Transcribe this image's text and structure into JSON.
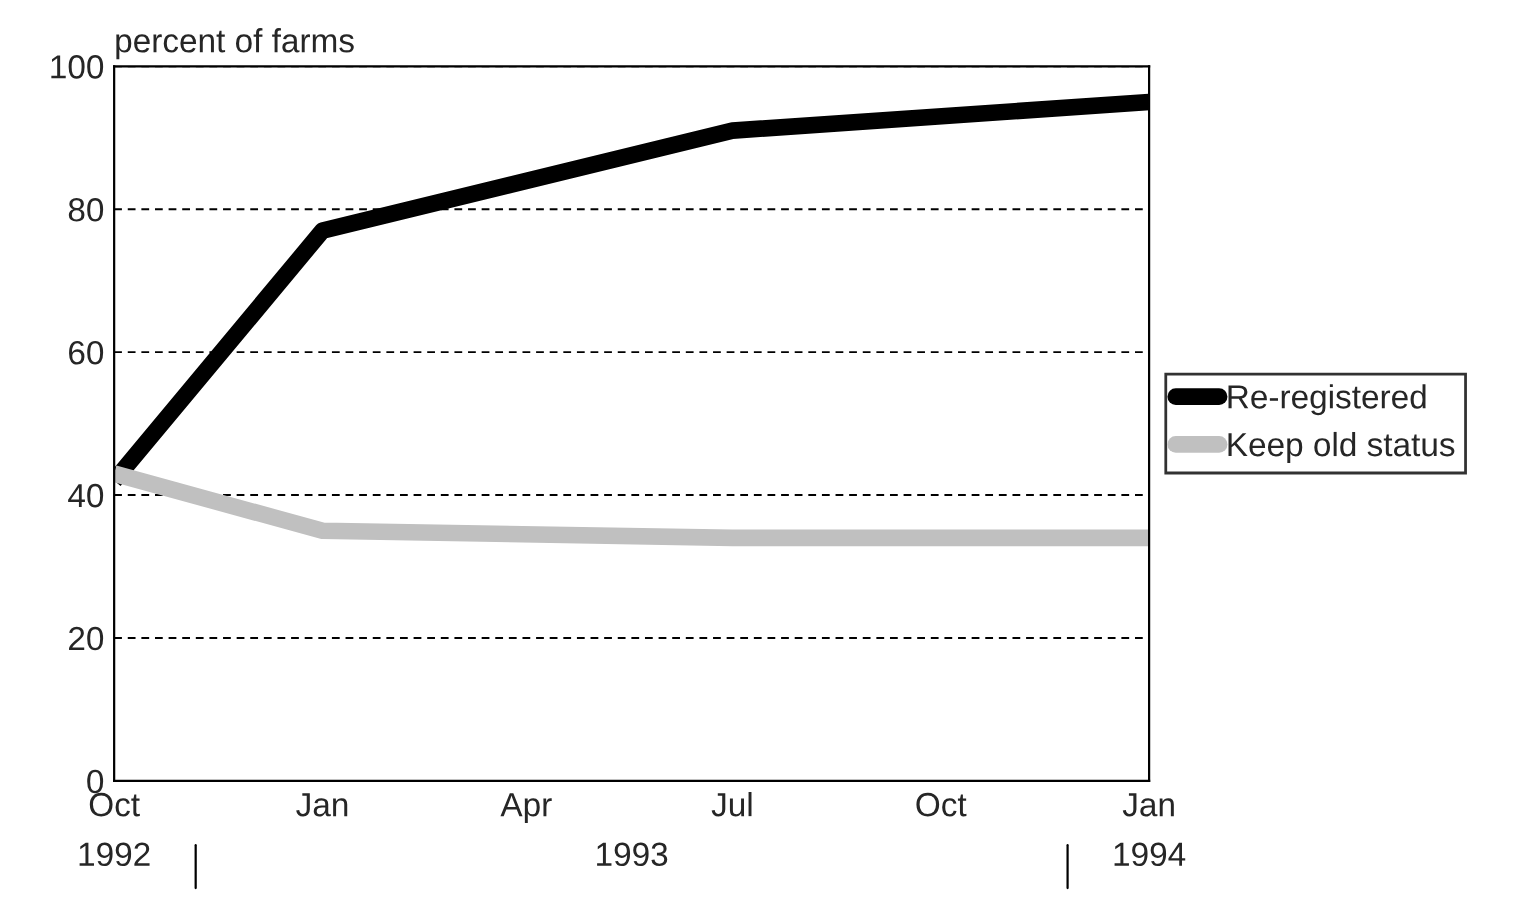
{
  "chart_data": {
    "type": "line",
    "ylabel": "percent of farms",
    "x": [
      "1992-10",
      "1993-01",
      "1993-07",
      "1994-01"
    ],
    "series": [
      {
        "name": "Re-registered",
        "color": "#000000",
        "values": [
          42,
          77,
          91,
          95
        ]
      },
      {
        "name": "Keep old status",
        "color": "#c0c0c0",
        "values": [
          43,
          35,
          34,
          34
        ]
      }
    ],
    "xlim": [
      "1992-10",
      "1994-01"
    ],
    "xticks": [
      {
        "value": "1992-10",
        "label": "Oct"
      },
      {
        "value": "1993-01",
        "label": "Jan"
      },
      {
        "value": "1993-04",
        "label": "Apr"
      },
      {
        "value": "1993-07",
        "label": "Jul"
      },
      {
        "value": "1993-10",
        "label": "Oct"
      },
      {
        "value": "1994-01",
        "label": "Jan"
      }
    ],
    "ylim": [
      0,
      100
    ],
    "yticks": [
      0,
      20,
      40,
      60,
      80,
      100
    ],
    "annotations": [
      "1992",
      "1993",
      "1994"
    ],
    "grid": "y",
    "legend": "right",
    "line_style": "solid",
    "marker": "none"
  }
}
